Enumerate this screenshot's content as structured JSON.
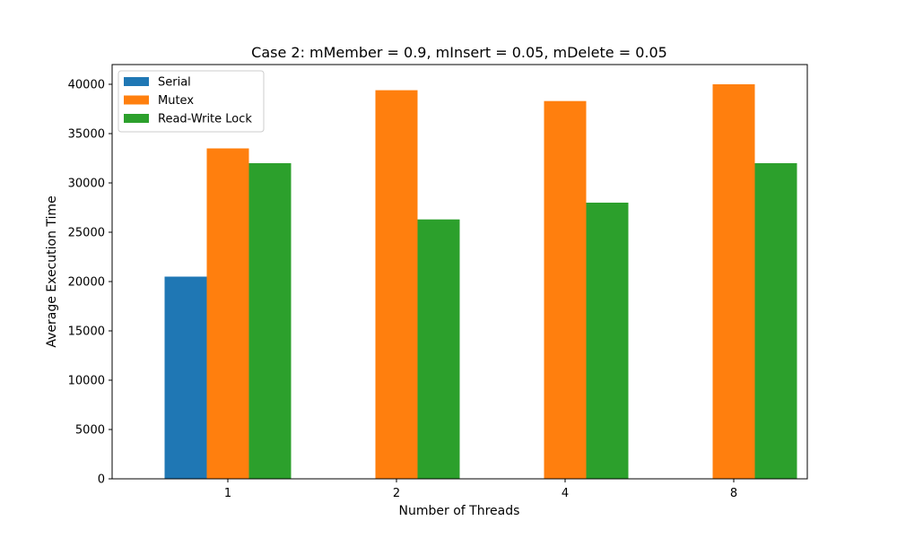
{
  "chart_data": {
    "type": "bar",
    "title": "Case 2: mMember = 0.9, mInsert = 0.05, mDelete = 0.05",
    "xlabel": "Number of Threads",
    "ylabel": "Average Execution Time",
    "categories": [
      "1",
      "2",
      "4",
      "8"
    ],
    "ylim": [
      0,
      42000
    ],
    "yticks": [
      0,
      5000,
      10000,
      15000,
      20000,
      25000,
      30000,
      35000,
      40000
    ],
    "grid": false,
    "legend_position": "top-left",
    "series": [
      {
        "name": "Serial",
        "color": "#1f77b4",
        "values": [
          20500,
          0,
          0,
          0
        ]
      },
      {
        "name": "Mutex",
        "color": "#ff7f0e",
        "values": [
          33500,
          39400,
          38300,
          40000
        ]
      },
      {
        "name": "Read-Write Lock",
        "color": "#2ca02c",
        "values": [
          32000,
          26300,
          28000,
          32000
        ]
      }
    ]
  }
}
